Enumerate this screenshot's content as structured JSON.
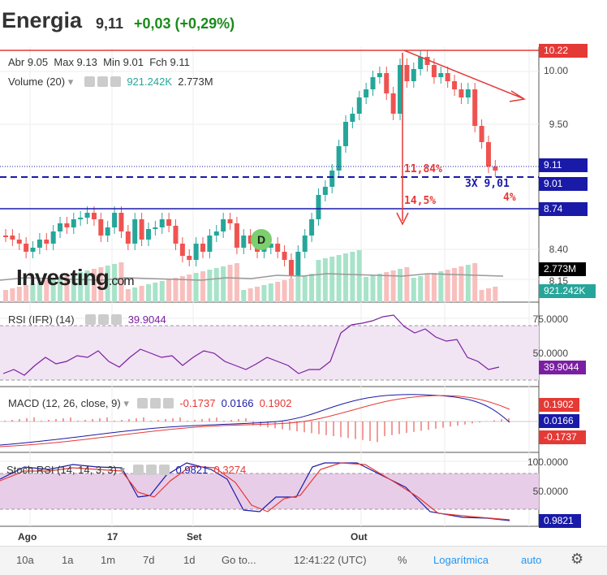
{
  "header": {
    "name": "Energia",
    "price": "9,11",
    "change": "+0,03 (+0,29%)"
  },
  "main": {
    "ohlc": {
      "open": "Abr 9.05",
      "max": "Max 9.13",
      "min": "Min 9.01",
      "close": "Fch 9.11"
    },
    "volume_legend": {
      "label": "Volume (20)",
      "v1": "921.242K",
      "v2": "2.773M"
    },
    "y_ticks": [
      "10.00",
      "9.50",
      "8.40",
      "8.15"
    ],
    "tags": {
      "top": "10.22",
      "last": "9.11",
      "dashed": "9.01",
      "support": "8.74",
      "vol_avg": "2.773M",
      "vol": "921.242K"
    },
    "annotations": {
      "pct1": "11,84%",
      "pct2": "14,5%",
      "pct3": "4%",
      "triple": "3X 9,01"
    },
    "watermark": "Investing",
    "watermark_suffix": ".com",
    "marker": "D"
  },
  "rsi": {
    "label": "RSI (IFR) (14)",
    "value": "39.9044",
    "ticks": [
      "75.0000",
      "50.0000"
    ],
    "tag": "39.9044"
  },
  "macd": {
    "label": "MACD (12, 26, close, 9)",
    "v1": "-0.1737",
    "v2": "0.0166",
    "v3": "0.1902",
    "tags": [
      "0.1902",
      "0.0166",
      "-0.1737"
    ]
  },
  "stoch": {
    "label": "Stoch RSI (14, 14, 3, 3)",
    "v1": "0.9821",
    "v2": "0.3274",
    "ticks": [
      "100.0000",
      "50.0000"
    ],
    "tag": "0.9821"
  },
  "x_axis": [
    "Ago",
    "17",
    "Set",
    "Out"
  ],
  "bottom": {
    "b1": "10a",
    "b2": "1a",
    "b3": "1m",
    "b4": "7d",
    "b5": "1d",
    "b6": "Go to...",
    "time": "12:41:22 (UTC)",
    "pct": "%",
    "log": "Logarítmica",
    "auto": "auto"
  },
  "colors": {
    "up": "#26a69a",
    "down": "#ef5350",
    "red_line": "#e53935",
    "blue_line": "#1a1aa8"
  }
}
